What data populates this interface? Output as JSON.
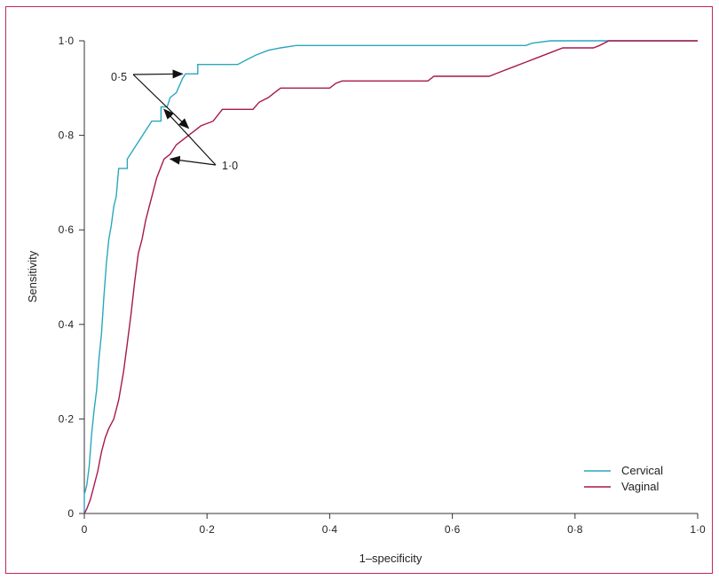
{
  "chart_data": {
    "type": "line",
    "xlabel": "1–specificity",
    "ylabel": "Sensitivity",
    "xlim": [
      0,
      1
    ],
    "ylim": [
      0,
      1
    ],
    "x_ticks": [
      {
        "value": 0,
        "label": "0"
      },
      {
        "value": 0.2,
        "label": "0·2"
      },
      {
        "value": 0.4,
        "label": "0·4"
      },
      {
        "value": 0.6,
        "label": "0·6"
      },
      {
        "value": 0.8,
        "label": "0·8"
      },
      {
        "value": 1.0,
        "label": "1·0"
      }
    ],
    "y_ticks": [
      {
        "value": 0,
        "label": "0"
      },
      {
        "value": 0.2,
        "label": "0·2"
      },
      {
        "value": 0.4,
        "label": "0·4"
      },
      {
        "value": 0.6,
        "label": "0·6"
      },
      {
        "value": 0.8,
        "label": "0·8"
      },
      {
        "value": 1.0,
        "label": "1·0"
      }
    ],
    "grid": false,
    "legend_position": "bottom-right",
    "series": [
      {
        "name": "Cervical",
        "color": "#2aa7bd",
        "points": [
          [
            0,
            0
          ],
          [
            0,
            0.04
          ],
          [
            0.004,
            0.06
          ],
          [
            0.008,
            0.1
          ],
          [
            0.012,
            0.17
          ],
          [
            0.016,
            0.22
          ],
          [
            0.02,
            0.26
          ],
          [
            0.024,
            0.33
          ],
          [
            0.028,
            0.38
          ],
          [
            0.032,
            0.46
          ],
          [
            0.036,
            0.53
          ],
          [
            0.04,
            0.58
          ],
          [
            0.044,
            0.61
          ],
          [
            0.048,
            0.65
          ],
          [
            0.052,
            0.67
          ],
          [
            0.056,
            0.73
          ],
          [
            0.07,
            0.73
          ],
          [
            0.07,
            0.75
          ],
          [
            0.08,
            0.77
          ],
          [
            0.09,
            0.79
          ],
          [
            0.1,
            0.81
          ],
          [
            0.11,
            0.83
          ],
          [
            0.125,
            0.83
          ],
          [
            0.125,
            0.86
          ],
          [
            0.135,
            0.86
          ],
          [
            0.14,
            0.88
          ],
          [
            0.15,
            0.89
          ],
          [
            0.16,
            0.92
          ],
          [
            0.165,
            0.93
          ],
          [
            0.185,
            0.93
          ],
          [
            0.185,
            0.95
          ],
          [
            0.25,
            0.95
          ],
          [
            0.265,
            0.96
          ],
          [
            0.28,
            0.97
          ],
          [
            0.3,
            0.98
          ],
          [
            0.32,
            0.985
          ],
          [
            0.345,
            0.99
          ],
          [
            0.72,
            0.99
          ],
          [
            0.73,
            0.995
          ],
          [
            0.76,
            1.0
          ],
          [
            1.0,
            1.0
          ]
        ]
      },
      {
        "name": "Vaginal",
        "color": "#a8174f",
        "points": [
          [
            0,
            0
          ],
          [
            0.004,
            0.01
          ],
          [
            0.01,
            0.03
          ],
          [
            0.016,
            0.06
          ],
          [
            0.022,
            0.09
          ],
          [
            0.028,
            0.13
          ],
          [
            0.034,
            0.16
          ],
          [
            0.04,
            0.18
          ],
          [
            0.048,
            0.2
          ],
          [
            0.056,
            0.24
          ],
          [
            0.064,
            0.3
          ],
          [
            0.07,
            0.36
          ],
          [
            0.076,
            0.42
          ],
          [
            0.082,
            0.49
          ],
          [
            0.088,
            0.55
          ],
          [
            0.094,
            0.58
          ],
          [
            0.1,
            0.62
          ],
          [
            0.106,
            0.65
          ],
          [
            0.112,
            0.68
          ],
          [
            0.118,
            0.71
          ],
          [
            0.124,
            0.73
          ],
          [
            0.13,
            0.75
          ],
          [
            0.14,
            0.76
          ],
          [
            0.15,
            0.78
          ],
          [
            0.16,
            0.79
          ],
          [
            0.17,
            0.8
          ],
          [
            0.18,
            0.81
          ],
          [
            0.19,
            0.82
          ],
          [
            0.21,
            0.83
          ],
          [
            0.225,
            0.855
          ],
          [
            0.275,
            0.855
          ],
          [
            0.285,
            0.87
          ],
          [
            0.3,
            0.88
          ],
          [
            0.31,
            0.89
          ],
          [
            0.32,
            0.9
          ],
          [
            0.4,
            0.9
          ],
          [
            0.41,
            0.91
          ],
          [
            0.42,
            0.915
          ],
          [
            0.56,
            0.915
          ],
          [
            0.57,
            0.925
          ],
          [
            0.66,
            0.925
          ],
          [
            0.68,
            0.935
          ],
          [
            0.7,
            0.945
          ],
          [
            0.72,
            0.955
          ],
          [
            0.74,
            0.965
          ],
          [
            0.76,
            0.975
          ],
          [
            0.78,
            0.985
          ],
          [
            0.83,
            0.985
          ],
          [
            0.84,
            0.99
          ],
          [
            0.855,
            1.0
          ],
          [
            1.0,
            1.0
          ]
        ]
      }
    ],
    "annotations": [
      {
        "label": "0·5",
        "arrows_to": [
          [
            0.16,
            0.93
          ],
          [
            0.17,
            0.815
          ]
        ]
      },
      {
        "label": "1·0",
        "arrows_to": [
          [
            0.13,
            0.855
          ],
          [
            0.14,
            0.75
          ]
        ]
      }
    ]
  }
}
